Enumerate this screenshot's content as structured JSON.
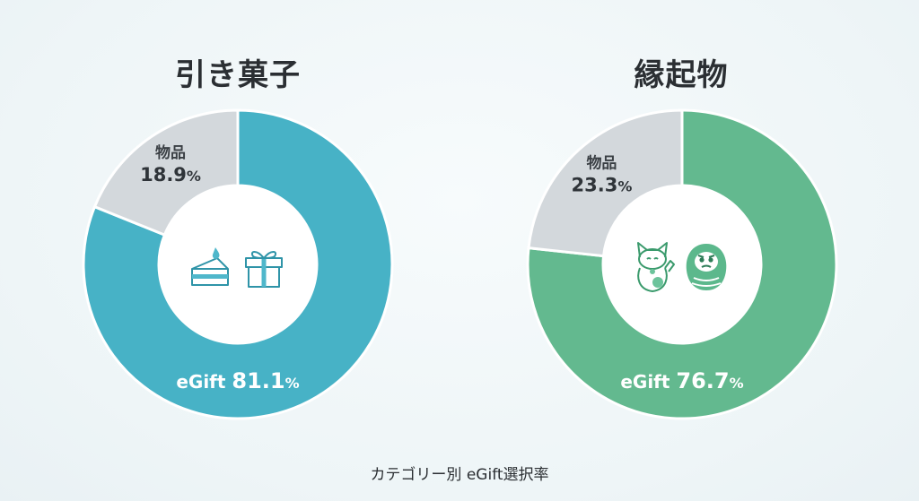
{
  "caption": "カテゴリー別 eGift選択率",
  "colors": {
    "egift_left": "#47b2c6",
    "egift_right": "#63b98f",
    "goods": "#d3d8dc",
    "center": "#ffffff",
    "icon_left": "#2f94a8",
    "icon_right": "#3a9a6c"
  },
  "chart_data": [
    {
      "type": "pie",
      "title": "引き菓子",
      "categories": [
        "eGift",
        "物品"
      ],
      "values": [
        81.1,
        18.9
      ],
      "unit": "%",
      "center_icons": [
        "cake-icon",
        "gift-box-icon"
      ]
    },
    {
      "type": "pie",
      "title": "縁起物",
      "categories": [
        "eGift",
        "物品"
      ],
      "values": [
        76.7,
        23.3
      ],
      "unit": "%",
      "center_icons": [
        "maneki-neko-icon",
        "daruma-icon"
      ]
    }
  ]
}
